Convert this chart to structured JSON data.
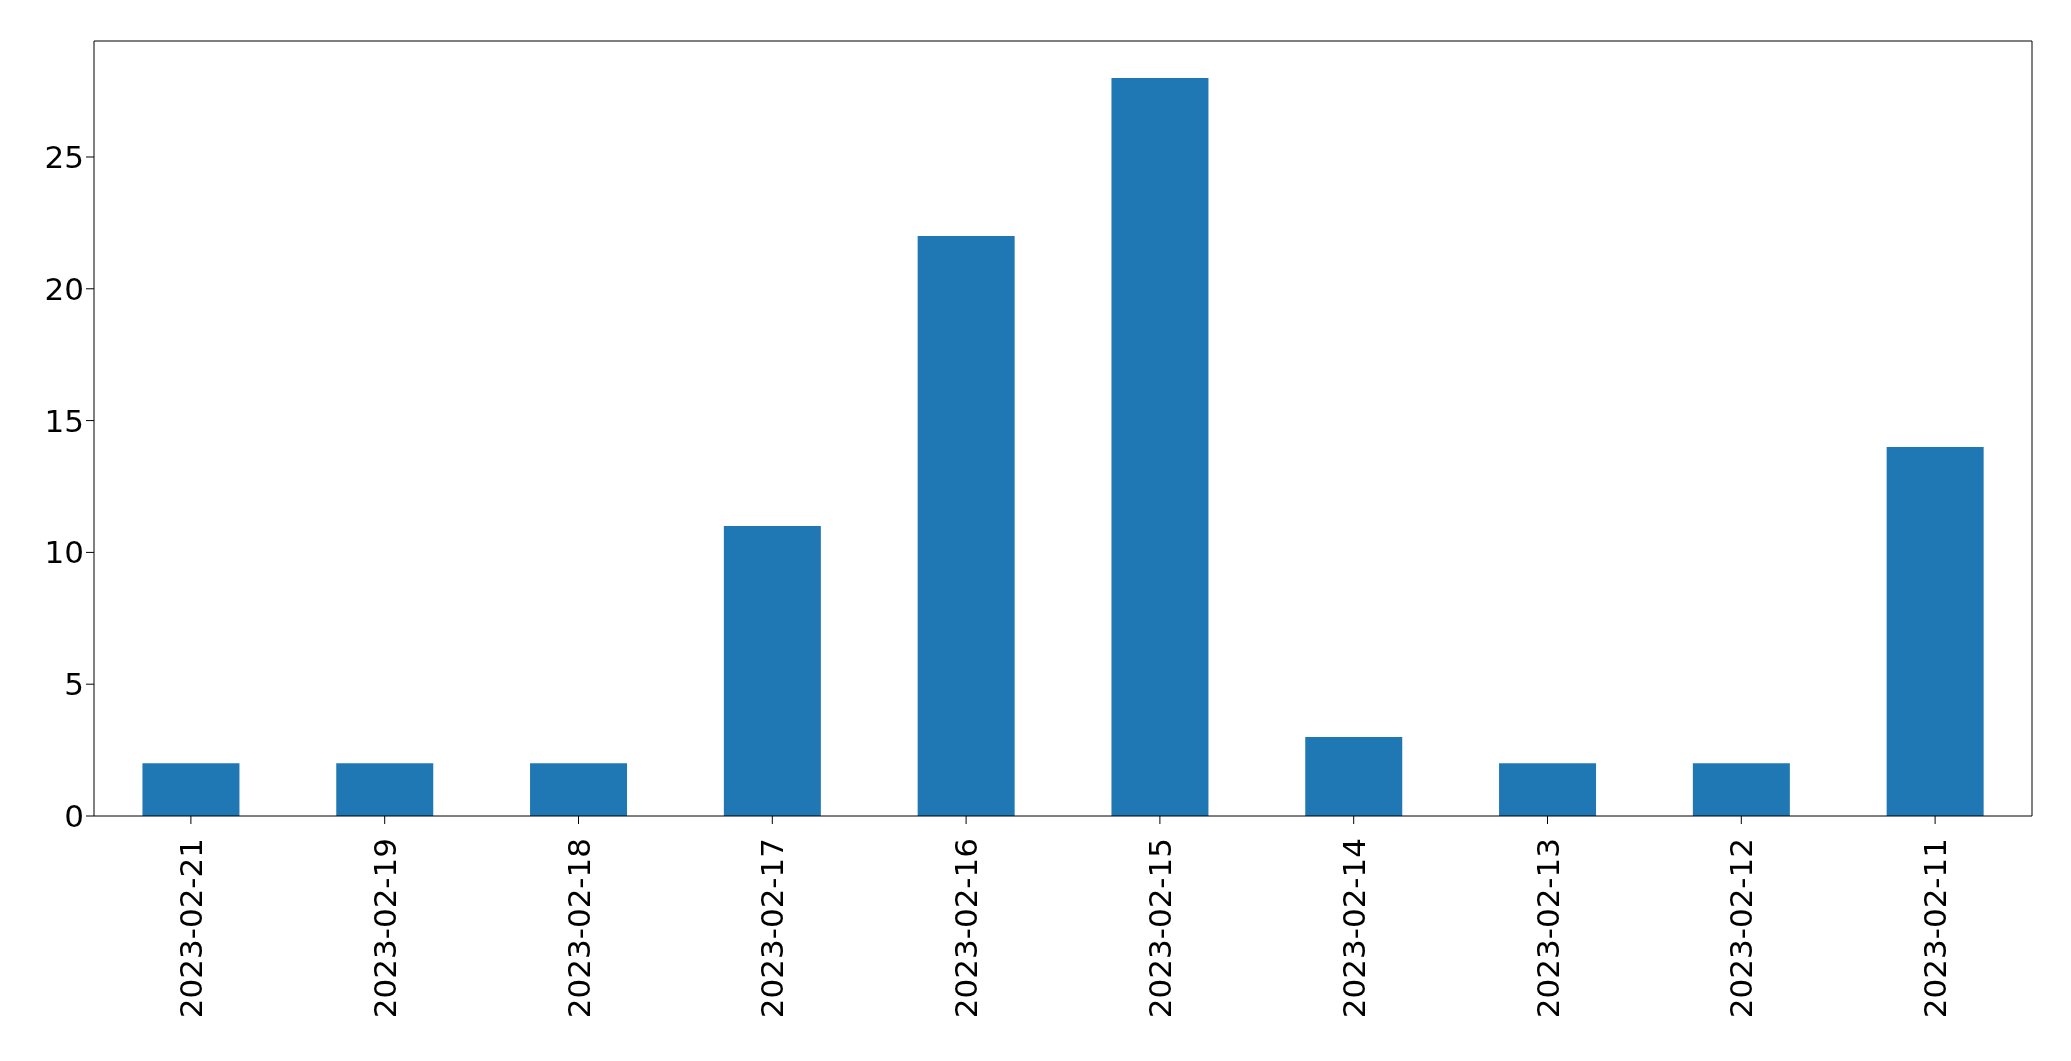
{
  "chart_data": {
    "type": "bar",
    "categories": [
      "2023-02-21",
      "2023-02-19",
      "2023-02-18",
      "2023-02-17",
      "2023-02-16",
      "2023-02-15",
      "2023-02-14",
      "2023-02-13",
      "2023-02-12",
      "2023-02-11"
    ],
    "values": [
      2,
      2,
      2,
      11,
      22,
      28,
      3,
      2,
      2,
      14
    ],
    "color": "#1f77b4",
    "ylim": [
      0,
      29.4
    ],
    "yticks": [
      0,
      5,
      10,
      15,
      20,
      25
    ]
  }
}
